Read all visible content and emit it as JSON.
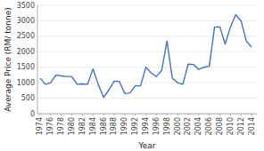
{
  "chart_data": {
    "type": "line",
    "xlabel": "Year",
    "ylabel": "Average Price (RM/ tonne)",
    "x": [
      1974,
      1975,
      1976,
      1977,
      1978,
      1979,
      1980,
      1981,
      1982,
      1983,
      1984,
      1985,
      1986,
      1987,
      1988,
      1989,
      1990,
      1991,
      1992,
      1993,
      1994,
      1995,
      1996,
      1997,
      1998,
      1999,
      2000,
      2001,
      2002,
      2003,
      2004,
      2005,
      2006,
      2007,
      2008,
      2009,
      2010,
      2011,
      2012,
      2013,
      2014
    ],
    "values": [
      1150,
      950,
      1000,
      1250,
      1220,
      1200,
      1200,
      950,
      960,
      950,
      1450,
      950,
      530,
      760,
      1050,
      1040,
      650,
      670,
      900,
      900,
      1500,
      1320,
      1200,
      1400,
      2350,
      1150,
      1000,
      950,
      1600,
      1590,
      1430,
      1500,
      1530,
      2800,
      2800,
      2250,
      2800,
      3200,
      3000,
      2350,
      2150
    ],
    "color": "#4472C4",
    "xlim": [
      1973.5,
      2015
    ],
    "ylim": [
      0,
      3500
    ],
    "xticks": [
      1974,
      1976,
      1978,
      1980,
      1982,
      1984,
      1986,
      1988,
      1990,
      1992,
      1994,
      1996,
      1998,
      2000,
      2002,
      2004,
      2006,
      2008,
      2010,
      2012,
      2014
    ],
    "yticks": [
      0,
      500,
      1000,
      1500,
      2000,
      2500,
      3000,
      3500
    ],
    "grid": true
  }
}
